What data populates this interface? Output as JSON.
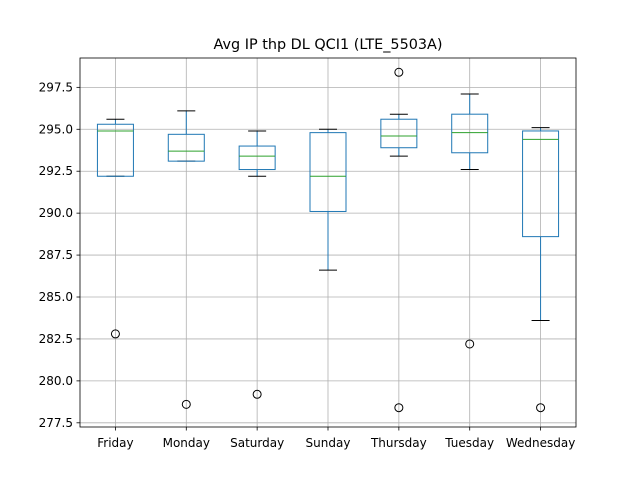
{
  "chart_data": {
    "type": "boxplot",
    "title": "Avg IP thp DL QCI1 (LTE_5503A)",
    "xlabel": "",
    "ylabel": "",
    "ylim": [
      277.25,
      299.25
    ],
    "yticks": [
      277.5,
      280.0,
      282.5,
      285.0,
      287.5,
      290.0,
      292.5,
      295.0,
      297.5
    ],
    "ytick_labels": [
      "277.5",
      "280.0",
      "282.5",
      "285.0",
      "287.5",
      "290.0",
      "292.5",
      "295.0",
      "297.5"
    ],
    "grid": true,
    "colors": {
      "box": "#1f77b4",
      "median": "#2ca02c",
      "whisker": "#000000",
      "grid": "#b0b0b0"
    },
    "categories": [
      "Friday",
      "Monday",
      "Saturday",
      "Sunday",
      "Thursday",
      "Tuesday",
      "Wednesday"
    ],
    "boxes": [
      {
        "whislo": 292.2,
        "q1": 292.2,
        "med": 294.9,
        "q3": 295.3,
        "whishi": 295.6,
        "fliers": [
          282.8
        ]
      },
      {
        "whislo": 293.1,
        "q1": 293.1,
        "med": 293.7,
        "q3": 294.7,
        "whishi": 296.1,
        "fliers": [
          278.6
        ]
      },
      {
        "whislo": 292.2,
        "q1": 292.6,
        "med": 293.4,
        "q3": 294.0,
        "whishi": 294.9,
        "fliers": [
          279.2
        ]
      },
      {
        "whislo": 286.6,
        "q1": 290.1,
        "med": 292.2,
        "q3": 294.8,
        "whishi": 295.0,
        "fliers": []
      },
      {
        "whislo": 293.4,
        "q1": 293.9,
        "med": 294.6,
        "q3": 295.6,
        "whishi": 295.9,
        "fliers": [
          298.4,
          278.4
        ]
      },
      {
        "whislo": 292.6,
        "q1": 293.6,
        "med": 294.8,
        "q3": 295.9,
        "whishi": 297.1,
        "fliers": [
          282.2
        ]
      },
      {
        "whislo": 283.6,
        "q1": 288.6,
        "med": 294.4,
        "q3": 294.9,
        "whishi": 295.1,
        "fliers": [
          278.4
        ]
      }
    ]
  }
}
